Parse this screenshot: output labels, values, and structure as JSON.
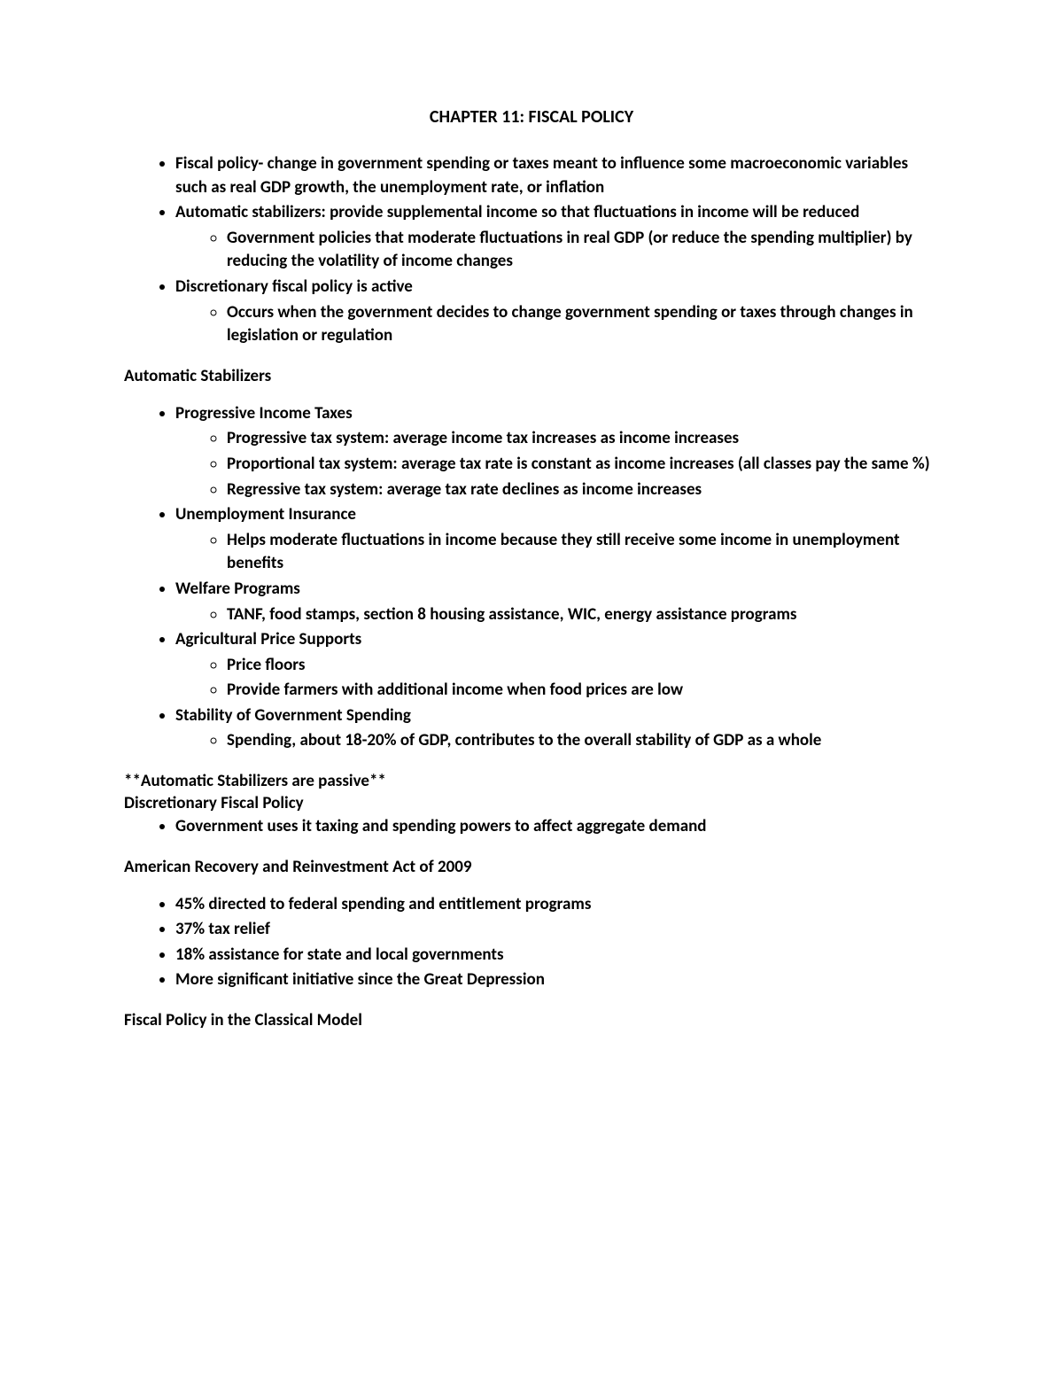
{
  "title": "CHAPTER 11: FISCAL POLICY",
  "intro": {
    "items": [
      {
        "text": "Fiscal policy- change in government spending or taxes meant to influence some macroeconomic variables such as real GDP growth, the unemployment rate, or inflation"
      },
      {
        "text": "Automatic stabilizers: provide supplemental income so that fluctuations in income will be reduced",
        "sub": [
          "Government policies that moderate fluctuations in real GDP (or reduce the spending multiplier) by reducing the volatility of income changes"
        ]
      },
      {
        "text": "Discretionary fiscal policy is active",
        "sub": [
          "Occurs when the government decides to change government spending or taxes through changes in legislation or regulation"
        ]
      }
    ]
  },
  "section1": {
    "heading": "Automatic Stabilizers",
    "items": [
      {
        "text": "Progressive Income Taxes",
        "sub": [
          "Progressive tax system: average income tax increases as income increases",
          "Proportional tax system: average tax rate is constant as income increases (all classes pay the same %)",
          "Regressive tax system: average tax rate declines as income increases"
        ]
      },
      {
        "text": "Unemployment Insurance",
        "sub": [
          "Helps moderate fluctuations in income because they still receive some income in unemployment benefits"
        ]
      },
      {
        "text": "Welfare Programs",
        "sub": [
          "TANF, food stamps, section 8 housing assistance, WIC, energy assistance programs"
        ]
      },
      {
        "text": "Agricultural Price Supports",
        "sub": [
          "Price floors",
          "Provide farmers with additional income when food prices are low"
        ]
      },
      {
        "text": "Stability of Government Spending",
        "sub": [
          "Spending, about 18-20% of GDP, contributes to the overall stability of GDP as a whole"
        ]
      }
    ]
  },
  "note1": "**Automatic Stabilizers are passive**",
  "section2": {
    "heading": "Discretionary Fiscal Policy",
    "items": [
      {
        "text": "Government uses it taxing and spending powers to affect aggregate demand"
      }
    ]
  },
  "section3": {
    "heading": "American Recovery and Reinvestment Act of 2009",
    "items": [
      {
        "text": "45% directed to federal spending and entitlement programs"
      },
      {
        "text": "37% tax relief"
      },
      {
        "text": "18% assistance for state and local governments"
      },
      {
        "text": "More significant initiative since the Great Depression"
      }
    ]
  },
  "section4": {
    "heading": "Fiscal Policy in the Classical Model"
  }
}
